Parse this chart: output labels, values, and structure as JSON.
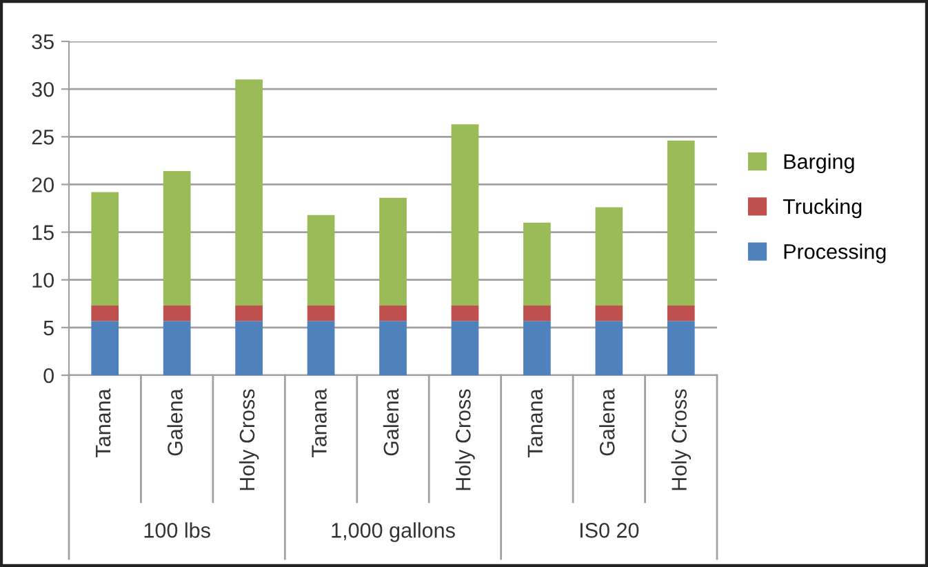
{
  "chart_data": {
    "type": "bar",
    "stacked": true,
    "categories": [
      "Tanana",
      "Galena",
      "Holy Cross",
      "Tanana",
      "Galena",
      "Holy Cross",
      "Tanana",
      "Galena",
      "Holy Cross"
    ],
    "series": [
      {
        "name": "Processing",
        "color": "#4f81bd",
        "values": [
          5.7,
          5.7,
          5.7,
          5.7,
          5.7,
          5.7,
          5.7,
          5.7,
          5.7
        ]
      },
      {
        "name": "Trucking",
        "color": "#c0504d",
        "values": [
          1.6,
          1.6,
          1.6,
          1.6,
          1.6,
          1.6,
          1.6,
          1.6,
          1.6
        ]
      },
      {
        "name": "Barging",
        "color": "#9bbb59",
        "values": [
          11.9,
          14.1,
          23.7,
          9.5,
          11.3,
          19.0,
          8.7,
          10.3,
          17.3
        ]
      }
    ],
    "annotations": [
      "100 lbs",
      "1,000 gallons",
      "IS0 20"
    ],
    "ylim": [
      0,
      35
    ],
    "yticks": [
      0,
      5,
      10,
      15,
      20,
      25,
      30,
      35
    ],
    "grid": "y",
    "legend": "right"
  }
}
